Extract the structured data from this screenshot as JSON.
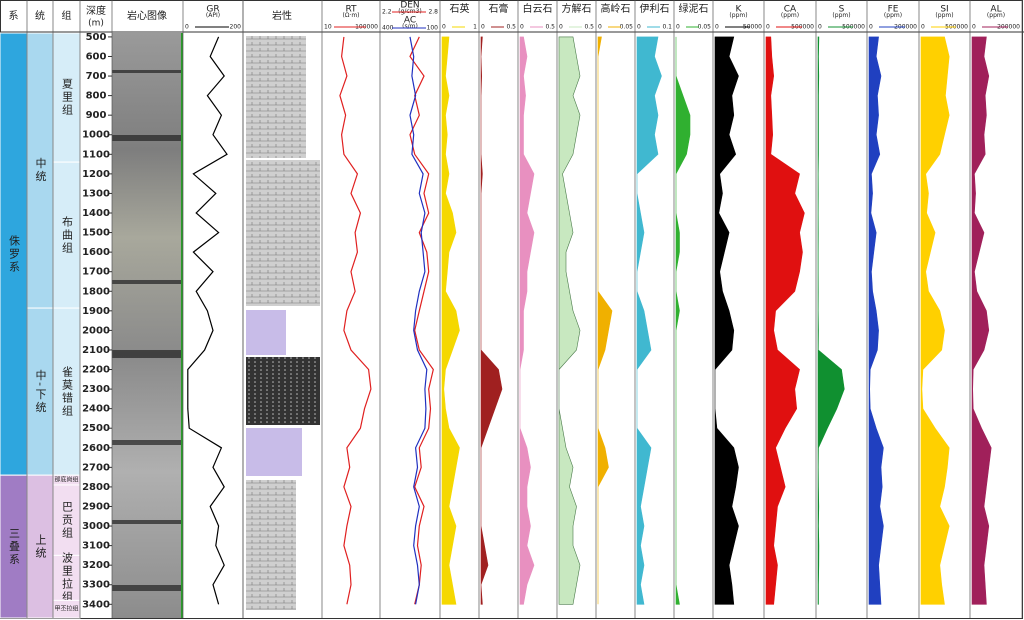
{
  "chart_data": {
    "type": "well-log",
    "headers": {
      "system": "系",
      "series": "统",
      "formation": "组",
      "depth": "深度",
      "depth_unit": "(m)",
      "core": "岩心图像",
      "lithology": "岩性"
    },
    "ylim": [
      480,
      3470
    ],
    "x": [
      500,
      600,
      700,
      800,
      900,
      1000,
      1100,
      1200,
      1300,
      1400,
      1500,
      1600,
      1700,
      1800,
      1900,
      2000,
      2100,
      2200,
      2300,
      2400,
      2500,
      2600,
      2700,
      2800,
      2900,
      3000,
      3100,
      3200,
      3300,
      3400
    ],
    "systems": [
      {
        "name": "侏罗系",
        "top": 480,
        "bottom": 2740,
        "color": "#2ea6de"
      },
      {
        "name": "三叠系",
        "top": 2740,
        "bottom": 3470,
        "color": "#a07cc4"
      }
    ],
    "series_units": [
      {
        "name": "中统",
        "top": 480,
        "bottom": 1886,
        "color": "#a9d8ef"
      },
      {
        "name": "中-下统",
        "top": 1886,
        "bottom": 2740,
        "color": "#a9d8ef"
      },
      {
        "name": "上统",
        "top": 2740,
        "bottom": 3470,
        "color": "#dcbfe2"
      }
    ],
    "formations": [
      {
        "name": "夏里组",
        "top": 480,
        "bottom": 1140,
        "color": "#d6edf8"
      },
      {
        "name": "布曲组",
        "top": 1140,
        "bottom": 1886,
        "color": "#d6edf8"
      },
      {
        "name": "雀莫错组",
        "top": 1886,
        "bottom": 2740,
        "color": "#d6edf8"
      },
      {
        "name": "那底岗组",
        "top": 2740,
        "bottom": 2790,
        "color": "#f2def1"
      },
      {
        "name": "巴贡组",
        "top": 2790,
        "bottom": 3150,
        "color": "#f2def1"
      },
      {
        "name": "波里拉组",
        "top": 3150,
        "bottom": 3380,
        "color": "#f2def1"
      },
      {
        "name": "甲丕拉组",
        "top": 3380,
        "bottom": 3470,
        "color": "#f2def1"
      }
    ],
    "tracks": [
      {
        "series": [
          {
            "name": "GR",
            "unit": "(API)",
            "xlim": [
              0,
              200
            ],
            "color": "#000000",
            "values": [
              120,
              90,
              140,
              80,
              130,
              100,
              150,
              30,
              110,
              40,
              120,
              30,
              100,
              40,
              80,
              100,
              70,
              10,
              10,
              10,
              15,
              130,
              100,
              140,
              90,
              120,
              110,
              140,
              100,
              120
            ]
          }
        ]
      },
      {
        "series": [
          {
            "name": "RT",
            "unit": "(Ω·m)",
            "xlim": [
              10,
              100000
            ],
            "log": true,
            "color": "#e02020",
            "values": [
              300,
              200,
              500,
              150,
              400,
              200,
              300,
              3000,
              1000,
              5000,
              2000,
              3000,
              1000,
              2000,
              500,
              300,
              1000,
              20000,
              30000,
              10000,
              5000,
              500,
              800,
              300,
              1000,
              500,
              300,
              800,
              1000,
              500
            ]
          }
        ]
      },
      {
        "series": [
          {
            "name": "DEN",
            "unit": "(g/cm3)",
            "xlim": [
              2.2,
              2.8
            ],
            "color": "#e02020",
            "values": [
              2.6,
              2.5,
              2.65,
              2.55,
              2.6,
              2.5,
              2.55,
              2.7,
              2.65,
              2.7,
              2.6,
              2.68,
              2.7,
              2.65,
              2.6,
              2.55,
              2.6,
              2.75,
              2.7,
              2.72,
              2.7,
              2.6,
              2.62,
              2.55,
              2.65,
              2.6,
              2.58,
              2.62,
              2.6,
              2.55
            ]
          },
          {
            "name": "AC",
            "unit": "(s/m)",
            "xlim": [
              400,
              100
            ],
            "color": "#2030c0",
            "values": [
              250,
              230,
              240,
              220,
              250,
              230,
              240,
              180,
              200,
              170,
              190,
              180,
              170,
              200,
              220,
              230,
              210,
              160,
              170,
              165,
              170,
              220,
              210,
              230,
              200,
              220,
              230,
              210,
              200,
              220
            ]
          }
        ]
      },
      {
        "fill": true,
        "series": [
          {
            "name": "石英",
            "xlim": [
              0,
              1
            ],
            "color": "#f5d800",
            "values": [
              0.2,
              0.15,
              0.1,
              0.2,
              0.1,
              0.15,
              0.1,
              0.2,
              0.1,
              0.3,
              0.4,
              0.2,
              0.15,
              0.1,
              0.4,
              0.5,
              0.3,
              0.1,
              0.05,
              0.1,
              0.2,
              0.5,
              0.4,
              0.3,
              0.2,
              0.4,
              0.3,
              0.2,
              0.3,
              0.4
            ]
          }
        ]
      },
      {
        "fill": true,
        "series": [
          {
            "name": "石膏",
            "xlim": [
              0,
              0.5
            ],
            "color": "#a02020",
            "values": [
              0.02,
              0,
              0.01,
              0,
              0,
              0,
              0,
              0.02,
              0,
              0,
              0,
              0,
              0,
              0,
              0,
              0,
              0,
              0.25,
              0.3,
              0.2,
              0.1,
              0,
              0,
              0,
              0,
              0,
              0.05,
              0.1,
              0,
              0.02
            ]
          }
        ]
      },
      {
        "fill": true,
        "series": [
          {
            "name": "白云石",
            "xlim": [
              0,
              0.5
            ],
            "color": "#e890c0",
            "values": [
              0.05,
              0.1,
              0.05,
              0.08,
              0.05,
              0.05,
              0.05,
              0.2,
              0.15,
              0.1,
              0.2,
              0.15,
              0.1,
              0.1,
              0.05,
              0.05,
              0.05,
              0,
              0,
              0,
              0,
              0.1,
              0.15,
              0.1,
              0.1,
              0.15,
              0.1,
              0.2,
              0.1,
              0.05
            ]
          }
        ]
      },
      {
        "fill": true,
        "series": [
          {
            "name": "方解石",
            "xlim": [
              0,
              0.5
            ],
            "color": "#c8e8c0",
            "values": [
              0.2,
              0.25,
              0.3,
              0.2,
              0.3,
              0.25,
              0.2,
              0.05,
              0.1,
              0.15,
              0.2,
              0.1,
              0.1,
              0.15,
              0.2,
              0.3,
              0.25,
              0,
              0,
              0,
              0.05,
              0.1,
              0.2,
              0.15,
              0.25,
              0.2,
              0.2,
              0.3,
              0.25,
              0.2
            ]
          }
        ]
      },
      {
        "fill": true,
        "series": [
          {
            "name": "高岭石",
            "xlim": [
              0,
              0.05
            ],
            "color": "#f0b000",
            "values": [
              0.005,
              0,
              0,
              0,
              0,
              0,
              0,
              0,
              0,
              0,
              0,
              0,
              0,
              0,
              0.02,
              0.015,
              0.01,
              0,
              0,
              0,
              0,
              0.01,
              0.015,
              0,
              0,
              0,
              0,
              0,
              0,
              0
            ]
          }
        ]
      },
      {
        "fill": true,
        "series": [
          {
            "name": "伊利石",
            "xlim": [
              0,
              0.1
            ],
            "color": "#40b8d0",
            "values": [
              0.06,
              0.05,
              0.07,
              0.05,
              0.06,
              0.05,
              0.06,
              0,
              0,
              0.01,
              0.02,
              0.01,
              0,
              0,
              0.02,
              0.03,
              0.04,
              0,
              0,
              0,
              0,
              0.04,
              0.03,
              0.02,
              0.01,
              0.02,
              0.01,
              0.02,
              0.01,
              0.02
            ]
          }
        ]
      },
      {
        "fill": true,
        "series": [
          {
            "name": "绿泥石",
            "xlim": [
              0,
              0.05
            ],
            "color": "#30b030",
            "values": [
              0,
              0,
              0,
              0.01,
              0.02,
              0.02,
              0.015,
              0,
              0,
              0,
              0.005,
              0.005,
              0,
              0,
              0.005,
              0,
              0,
              0,
              0,
              0,
              0,
              0,
              0,
              0,
              0,
              0,
              0,
              0,
              0,
              0.005
            ]
          }
        ]
      },
      {
        "fill": true,
        "series": [
          {
            "name": "K",
            "unit": "(ppm)",
            "xlim": [
              0,
              50000
            ],
            "color": "#000000",
            "values": [
              20000,
              15000,
              25000,
              18000,
              20000,
              15000,
              22000,
              5000,
              8000,
              4000,
              15000,
              10000,
              5000,
              8000,
              15000,
              20000,
              18000,
              0,
              0,
              0,
              2000,
              20000,
              25000,
              22000,
              18000,
              25000,
              20000,
              15000,
              18000,
              20000
            ]
          }
        ]
      },
      {
        "fill": true,
        "series": [
          {
            "name": "CA",
            "unit": "(ppm)",
            "xlim": [
              0,
              500000
            ],
            "color": "#e01010",
            "values": [
              50000,
              60000,
              80000,
              50000,
              60000,
              70000,
              50000,
              350000,
              300000,
              400000,
              350000,
              380000,
              350000,
              300000,
              100000,
              80000,
              120000,
              350000,
              300000,
              320000,
              200000,
              100000,
              150000,
              200000,
              120000,
              100000,
              80000,
              120000,
              100000,
              80000
            ]
          }
        ]
      },
      {
        "fill": true,
        "series": [
          {
            "name": "S",
            "unit": "(ppm)",
            "xlim": [
              0,
              500000
            ],
            "color": "#109030",
            "values": [
              10000,
              5000,
              8000,
              5000,
              5000,
              5000,
              5000,
              2000,
              3000,
              2000,
              3000,
              2000,
              2000,
              3000,
              2000,
              5000,
              3000,
              250000,
              280000,
              200000,
              100000,
              5000,
              3000,
              5000,
              8000,
              5000,
              10000,
              8000,
              5000,
              5000
            ]
          }
        ]
      },
      {
        "fill": true,
        "series": [
          {
            "name": "FE",
            "unit": "(ppm)",
            "xlim": [
              0,
              200000
            ],
            "color": "#2040c0",
            "values": [
              40000,
              30000,
              50000,
              35000,
              40000,
              30000,
              45000,
              10000,
              15000,
              8000,
              30000,
              20000,
              10000,
              15000,
              30000,
              40000,
              35000,
              5000,
              3000,
              5000,
              30000,
              60000,
              50000,
              55000,
              45000,
              60000,
              50000,
              40000,
              45000,
              50000
            ]
          }
        ]
      },
      {
        "fill": true,
        "series": [
          {
            "name": "SI",
            "unit": "(ppm)",
            "xlim": [
              0,
              500000
            ],
            "color": "#ffd000",
            "values": [
              250000,
              300000,
              280000,
              260000,
              300000,
              250000,
              200000,
              50000,
              80000,
              60000,
              150000,
              100000,
              50000,
              80000,
              200000,
              250000,
              220000,
              20000,
              10000,
              20000,
              150000,
              300000,
              280000,
              250000,
              200000,
              300000,
              250000,
              200000,
              220000,
              250000
            ]
          }
        ]
      },
      {
        "fill": true,
        "series": [
          {
            "name": "AL",
            "unit": "(ppm)",
            "xlim": [
              0,
              200000
            ],
            "color": "#a0205a",
            "values": [
              60000,
              50000,
              70000,
              55000,
              60000,
              50000,
              55000,
              10000,
              15000,
              10000,
              50000,
              30000,
              10000,
              20000,
              60000,
              70000,
              50000,
              5000,
              3000,
              5000,
              40000,
              80000,
              70000,
              60000,
              50000,
              70000,
              60000,
              50000,
              55000,
              60000
            ]
          }
        ]
      }
    ]
  }
}
